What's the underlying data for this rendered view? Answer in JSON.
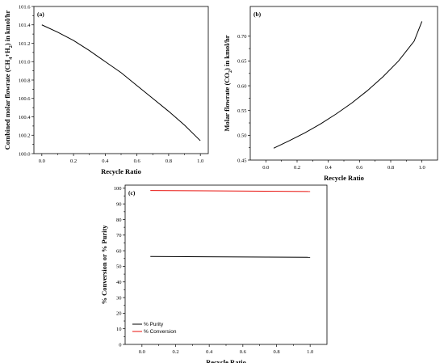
{
  "colors": {
    "axis": "#000000",
    "purity": "#000000",
    "conversion": "#e8100b",
    "line": "#000000"
  },
  "chart_data": [
    {
      "panel": "(a)",
      "type": "line",
      "xlabel": "Recycle Ratio",
      "ylabel_parts": [
        "Combined molar flowrate (CH",
        "4",
        "+H",
        "2",
        ") in kmol/hr"
      ],
      "xlim": [
        -0.05,
        1.05
      ],
      "ylim": [
        100.0,
        101.6
      ],
      "xticks": [
        0.0,
        0.2,
        0.4,
        0.6,
        0.8,
        1.0
      ],
      "xtick_labels": [
        "0.0",
        "0.2",
        "0.4",
        "0.6",
        "0.8",
        "1.0"
      ],
      "yticks": [
        100.0,
        100.2,
        100.4,
        100.6,
        100.8,
        101.0,
        101.2,
        101.4,
        101.6
      ],
      "ytick_labels": [
        "100.0",
        "100.2",
        "100.4",
        "100.6",
        "100.8",
        "101.0",
        "101.2",
        "101.4",
        "101.6"
      ],
      "series": [
        {
          "x": [
            0.0,
            0.1,
            0.2,
            0.3,
            0.4,
            0.5,
            0.6,
            0.7,
            0.8,
            0.9,
            1.0
          ],
          "y": [
            101.4,
            101.32,
            101.23,
            101.12,
            101.0,
            100.88,
            100.74,
            100.6,
            100.46,
            100.31,
            100.14
          ]
        }
      ]
    },
    {
      "panel": "(b)",
      "type": "line",
      "xlabel": "Recycle Ratio",
      "ylabel_parts": [
        "Molar flowrate (CO",
        "2",
        ") in kmol/hr"
      ],
      "xlim": [
        -0.1,
        1.1
      ],
      "ylim": [
        0.45,
        0.76
      ],
      "xticks": [
        0.0,
        0.2,
        0.4,
        0.6,
        0.8,
        1.0
      ],
      "xtick_labels": [
        "0.0",
        "0.2",
        "0.4",
        "0.6",
        "0.8",
        "1.0"
      ],
      "yticks": [
        0.45,
        0.5,
        0.55,
        0.6,
        0.65,
        0.7
      ],
      "ytick_labels": [
        "0.45",
        "0.50",
        "0.55",
        "0.60",
        "0.65",
        "0.70"
      ],
      "series": [
        {
          "x": [
            0.05,
            0.15,
            0.25,
            0.35,
            0.45,
            0.55,
            0.65,
            0.75,
            0.85,
            0.95,
            1.0
          ],
          "y": [
            0.474,
            0.489,
            0.505,
            0.523,
            0.543,
            0.565,
            0.59,
            0.618,
            0.65,
            0.69,
            0.73
          ]
        }
      ]
    },
    {
      "panel": "(c)",
      "type": "line",
      "xlabel": "Recycle Ratio",
      "ylabel": "% Conversion or % Purity",
      "xlim": [
        -0.1,
        1.1
      ],
      "ylim": [
        0,
        102
      ],
      "xticks": [
        0.0,
        0.2,
        0.4,
        0.6,
        0.8,
        1.0
      ],
      "xtick_labels": [
        "0.0",
        "0.2",
        "0.4",
        "0.6",
        "0.8",
        "1.0"
      ],
      "yticks": [
        0,
        10,
        20,
        30,
        40,
        50,
        60,
        70,
        80,
        90,
        100
      ],
      "ytick_labels": [
        "0",
        "10",
        "20",
        "30",
        "40",
        "50",
        "60",
        "70",
        "80",
        "90",
        "100"
      ],
      "legend_position": "bottom-left",
      "series": [
        {
          "name": "% Purity",
          "color": "#000000",
          "x": [
            0.05,
            1.0
          ],
          "y": [
            56.3,
            55.8
          ]
        },
        {
          "name": "% Conversion",
          "color": "#e8100b",
          "x": [
            0.05,
            1.0
          ],
          "y": [
            98.6,
            97.9
          ]
        }
      ]
    }
  ]
}
